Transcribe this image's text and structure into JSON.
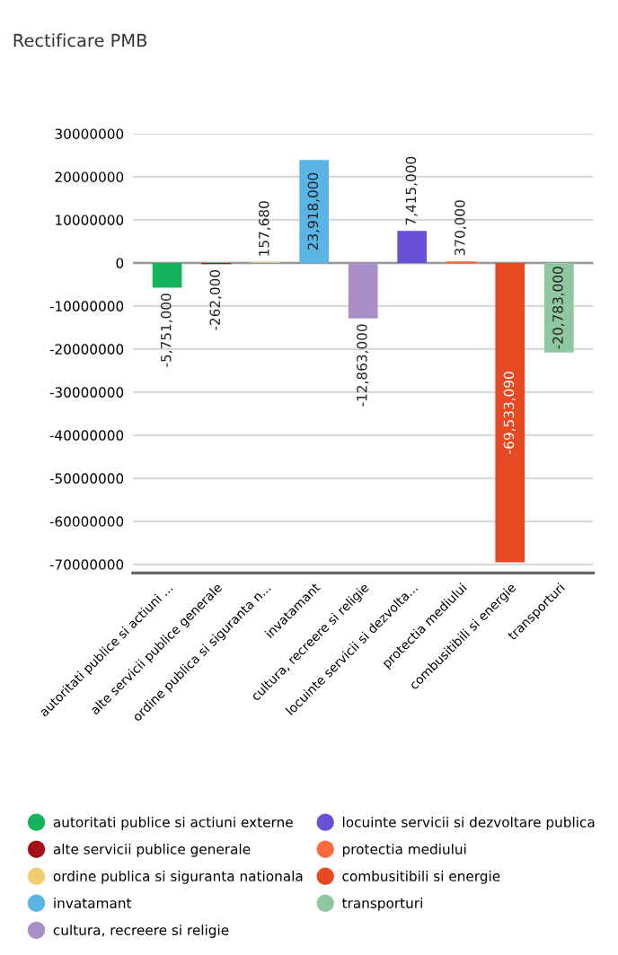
{
  "chart_data": {
    "type": "bar",
    "title": "Rectificare PMB",
    "categories": [
      "autoritati publice si actiuni ...",
      "alte servicii publice generale",
      "ordine publica si siguranta n...",
      "invatamant",
      "cultura, recreere si religie",
      "locuinte servicii si dezvolta...",
      "protectia mediului",
      "combusitibili si energie",
      "transporturi"
    ],
    "series": [
      {
        "name": "autoritati publice si actiuni externe",
        "color": "#17b35c",
        "values": [
          -5751000,
          null,
          null,
          null,
          null,
          null,
          null,
          null,
          null
        ],
        "value_labels": [
          "-5,751,000",
          null,
          null,
          null,
          null,
          null,
          null,
          null,
          null
        ]
      },
      {
        "name": "alte servicii publice generale",
        "color": "#a50f15",
        "values": [
          null,
          -262000,
          null,
          null,
          null,
          null,
          null,
          null,
          null
        ],
        "value_labels": [
          null,
          "-262,000",
          null,
          null,
          null,
          null,
          null,
          null,
          null
        ]
      },
      {
        "name": "ordine publica si siguranta nationala",
        "color": "#f0cd6e",
        "values": [
          null,
          null,
          157680,
          null,
          null,
          null,
          null,
          null,
          null
        ],
        "value_labels": [
          null,
          null,
          "157,680",
          null,
          null,
          null,
          null,
          null,
          null
        ]
      },
      {
        "name": "invatamant",
        "color": "#5ab4e5",
        "values": [
          null,
          null,
          null,
          23918000,
          null,
          null,
          null,
          null,
          null
        ],
        "value_labels": [
          null,
          null,
          null,
          "23,918,000",
          null,
          null,
          null,
          null,
          null
        ]
      },
      {
        "name": "cultura, recreere si religie",
        "color": "#a98fc6",
        "values": [
          null,
          null,
          null,
          null,
          -12863000,
          null,
          null,
          null,
          null
        ],
        "value_labels": [
          null,
          null,
          null,
          null,
          "-12,863,000",
          null,
          null,
          null,
          null
        ]
      },
      {
        "name": "locuinte servicii si dezvoltare publica",
        "color": "#6a4fd8",
        "values": [
          null,
          null,
          null,
          null,
          null,
          7415000,
          null,
          null,
          null
        ],
        "value_labels": [
          null,
          null,
          null,
          null,
          null,
          "7,415,000",
          null,
          null,
          null
        ]
      },
      {
        "name": "protectia mediului",
        "color": "#ff6a3d",
        "values": [
          null,
          null,
          null,
          null,
          null,
          null,
          370000,
          null,
          null
        ],
        "value_labels": [
          null,
          null,
          null,
          null,
          null,
          null,
          "370,000",
          null,
          null
        ]
      },
      {
        "name": "combusitibili si energie",
        "color": "#e64a22",
        "values": [
          null,
          null,
          null,
          null,
          null,
          null,
          null,
          -69533090,
          null
        ],
        "value_labels": [
          null,
          null,
          null,
          null,
          null,
          null,
          null,
          "-69,533,090",
          null
        ]
      },
      {
        "name": "transporturi",
        "color": "#8fc7a0",
        "values": [
          null,
          null,
          null,
          null,
          null,
          null,
          null,
          null,
          -20783000
        ],
        "value_labels": [
          null,
          null,
          null,
          null,
          null,
          null,
          null,
          null,
          "-20,783,000"
        ]
      }
    ],
    "ylim": [
      -72000000,
      30000000
    ],
    "yticks": [
      -70000000,
      -60000000,
      -50000000,
      -40000000,
      -30000000,
      -20000000,
      -10000000,
      0,
      10000000,
      20000000,
      30000000
    ],
    "grid": "y",
    "legend": "bottom"
  }
}
